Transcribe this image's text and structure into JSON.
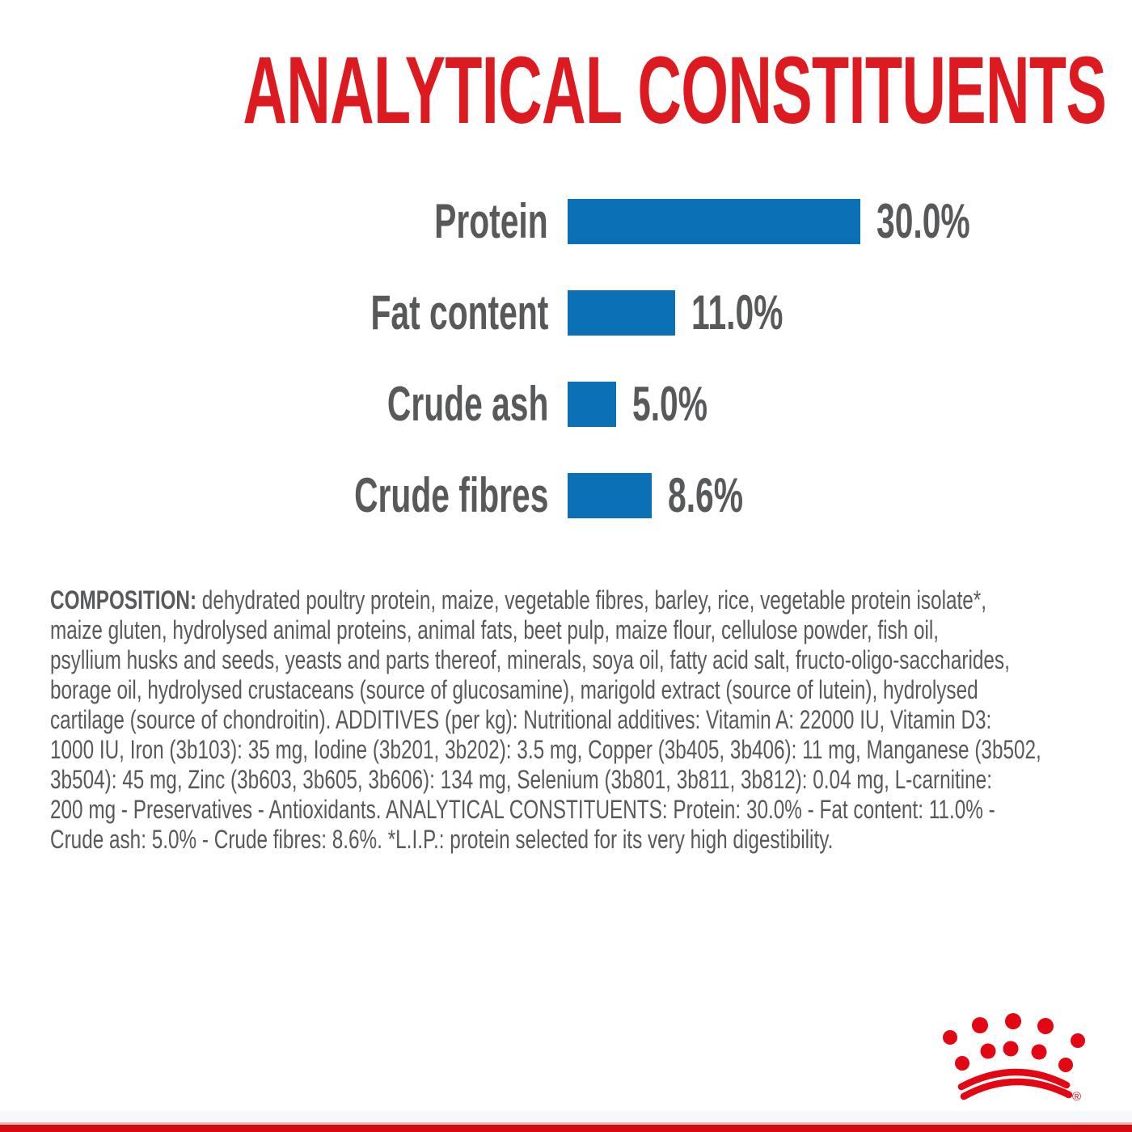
{
  "title": "ANALYTICAL CONSTITUENTS",
  "colors": {
    "title_red": "#de1a21",
    "bar_blue": "#0c70b7",
    "text_gray": "#58595b",
    "brand_red": "#e30613",
    "footer_red": "#d40b10"
  },
  "chart_data": {
    "type": "bar",
    "orientation": "horizontal",
    "title": "ANALYTICAL CONSTITUENTS",
    "unit": "%",
    "categories": [
      "Protein",
      "Fat content",
      "Crude ash",
      "Crude fibres"
    ],
    "values": [
      30.0,
      11.0,
      5.0,
      8.6
    ],
    "xlim": [
      0,
      30
    ],
    "grid": false,
    "legend": false,
    "rows": [
      {
        "label": "Protein",
        "value": 30.0,
        "display": "30.0%"
      },
      {
        "label": "Fat content",
        "value": 11.0,
        "display": "11.0%"
      },
      {
        "label": "Crude ash",
        "value": 5.0,
        "display": "5.0%"
      },
      {
        "label": "Crude fibres",
        "value": 8.6,
        "display": "8.6%"
      }
    ]
  },
  "composition": {
    "label": "COMPOSITION:",
    "lines": [
      " dehydrated poultry protein, maize, vegetable fibres, barley, rice, vegetable protein isolate*,",
      "maize gluten, hydrolysed animal proteins, animal fats, beet pulp, maize flour, cellulose powder, fish oil,",
      "psyllium husks and seeds, yeasts and parts thereof, minerals, soya oil, fatty acid salt, fructo-oligo-saccharides,",
      "borage oil, hydrolysed crustaceans (source of glucosamine), marigold extract (source of lutein), hydrolysed",
      "cartilage (source of chondroitin). ADDITIVES (per kg): Nutritional additives: Vitamin A: 22000 IU, Vitamin D3:",
      "1000 IU, Iron (3b103): 35 mg, Iodine (3b201, 3b202): 3.5 mg, Copper (3b405, 3b406): 11 mg, Manganese (3b502,",
      "3b504): 45 mg, Zinc (3b603, 3b605, 3b606): 134 mg, Selenium (3b801, 3b811, 3b812): 0.04 mg, L-carnitine:",
      "200 mg - Preservatives - Antioxidants. ANALYTICAL CONSTITUENTS: Protein: 30.0% - Fat content: 11.0% -",
      "Crude ash: 5.0% - Crude fibres: 8.6%. *L.I.P.: protein selected for its very high digestibility."
    ]
  },
  "brand": {
    "logo": "royal-canin-crown-logo",
    "registered_mark": "®"
  }
}
